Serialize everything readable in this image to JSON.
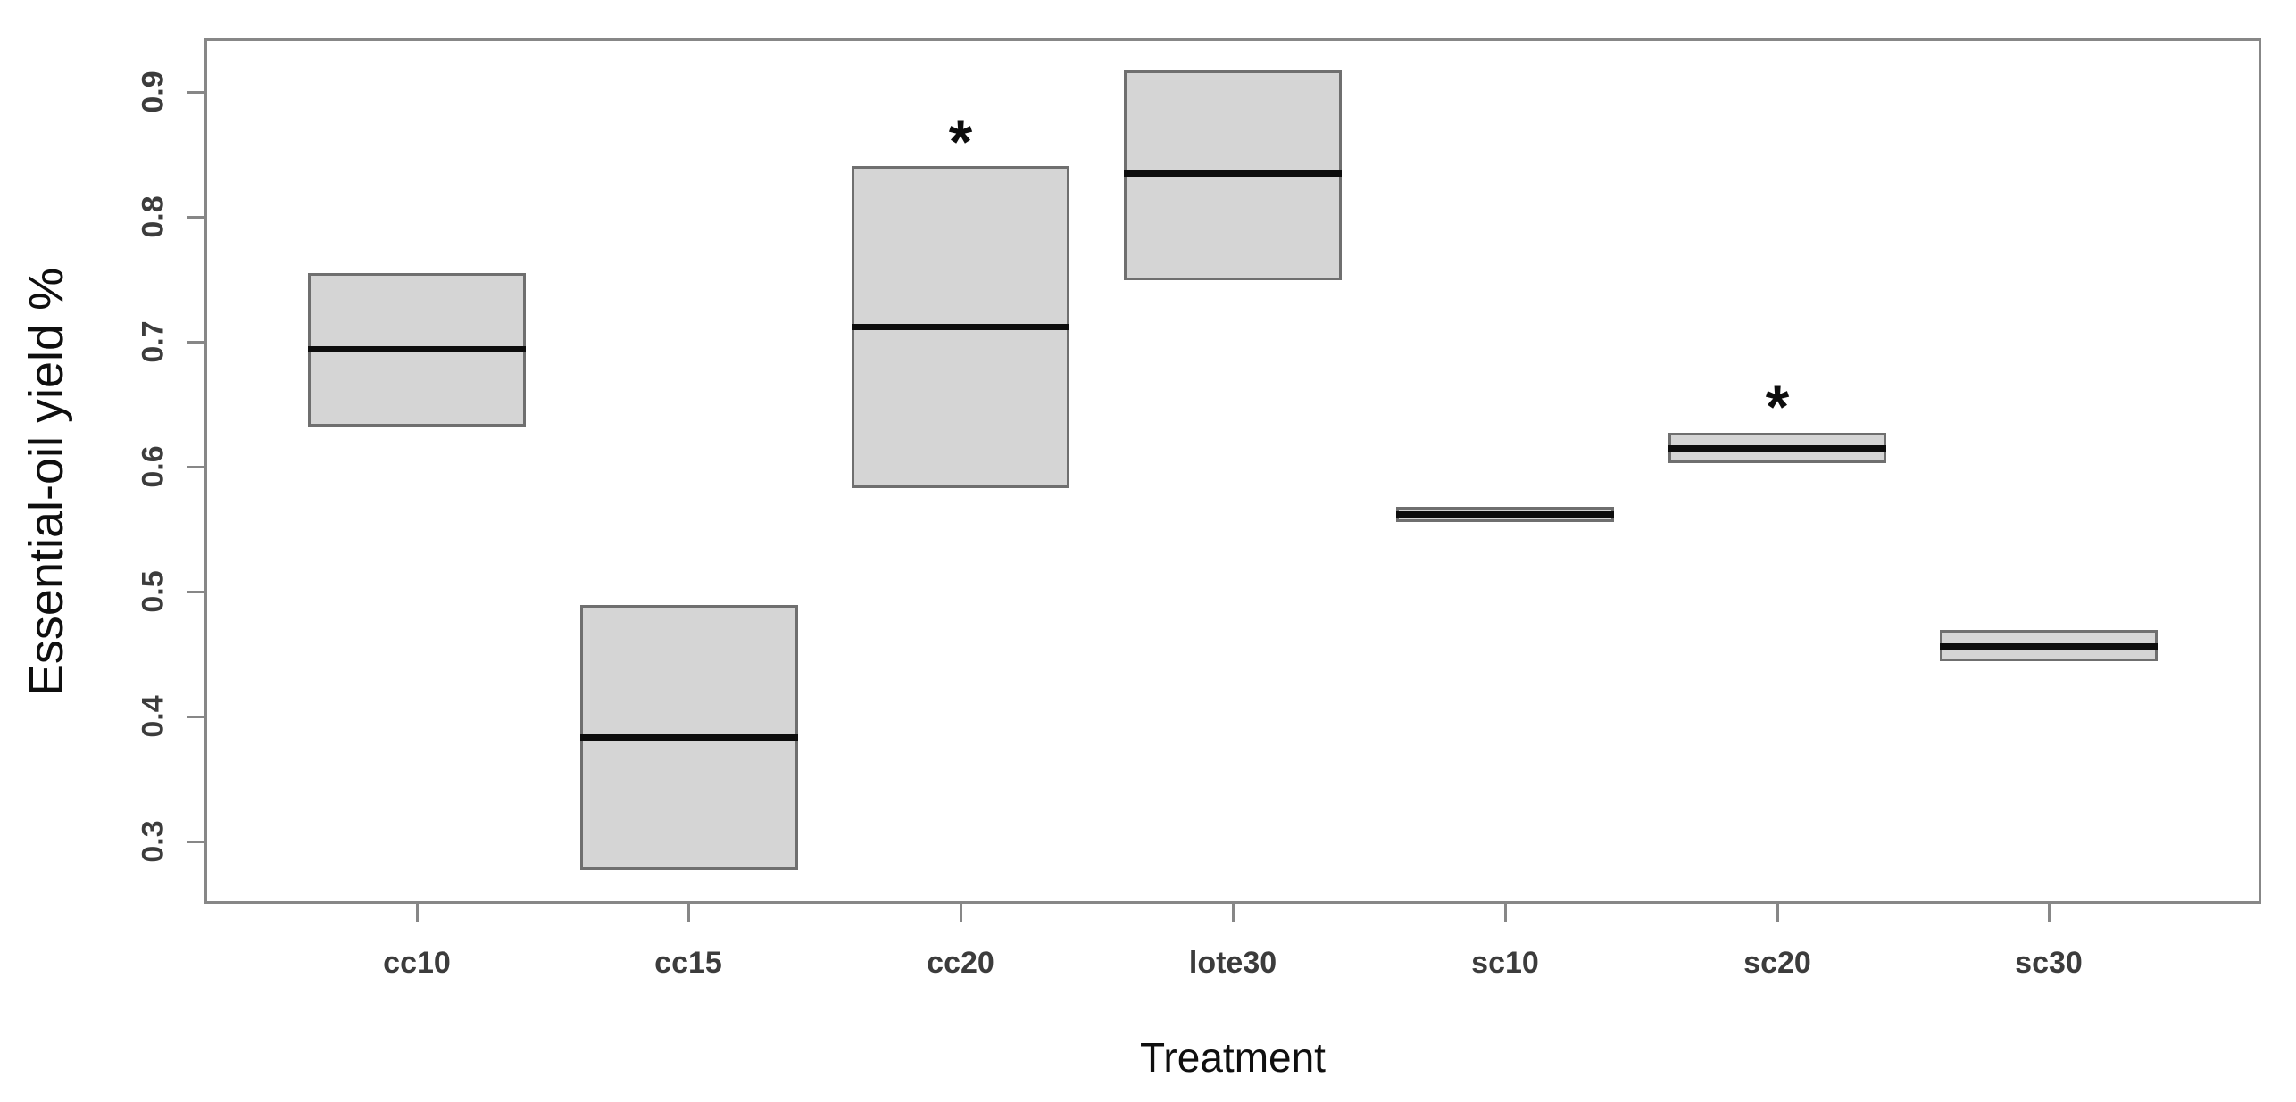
{
  "chart_data": {
    "type": "boxplot",
    "title": "",
    "xlabel": "Treatment",
    "ylabel": "Essential-oil yield %",
    "ylim": [
      0.25,
      0.943
    ],
    "yticks": [
      0.3,
      0.4,
      0.5,
      0.6,
      0.7,
      0.8,
      0.9
    ],
    "ytick_labels": [
      "0.3",
      "0.4",
      "0.5",
      "0.6",
      "0.7",
      "0.8",
      "0.9"
    ],
    "categories": [
      "cc10",
      "cc15",
      "cc20",
      "lote30",
      "sc10",
      "sc20",
      "sc30"
    ],
    "boxes": [
      {
        "label": "cc10",
        "low": 0.632,
        "median": 0.694,
        "high": 0.755,
        "significant": false,
        "asterisk_y": null
      },
      {
        "label": "cc15",
        "low": 0.277,
        "median": 0.383,
        "high": 0.489,
        "significant": false,
        "asterisk_y": null
      },
      {
        "label": "cc20",
        "low": 0.583,
        "median": 0.712,
        "high": 0.841,
        "significant": true,
        "asterisk_y": 0.868
      },
      {
        "label": "lote30",
        "low": 0.749,
        "median": 0.835,
        "high": 0.917,
        "significant": false,
        "asterisk_y": null
      },
      {
        "label": "sc10",
        "low": 0.556,
        "median": 0.562,
        "high": 0.568,
        "significant": false,
        "asterisk_y": null
      },
      {
        "label": "sc20",
        "low": 0.603,
        "median": 0.615,
        "high": 0.627,
        "significant": true,
        "asterisk_y": 0.656
      },
      {
        "label": "sc30",
        "low": 0.444,
        "median": 0.456,
        "high": 0.469,
        "significant": false,
        "asterisk_y": null
      }
    ],
    "significance_marker": "*",
    "grid": false,
    "legend": false,
    "colors": {
      "box_fill": "#d5d5d5",
      "box_border": "#6f6f6f",
      "median": "#0d0d0d",
      "axis": "#878787",
      "tick_label": "#3c3c3c",
      "axis_title": "#0f0f0f",
      "background": "#ffffff"
    }
  }
}
